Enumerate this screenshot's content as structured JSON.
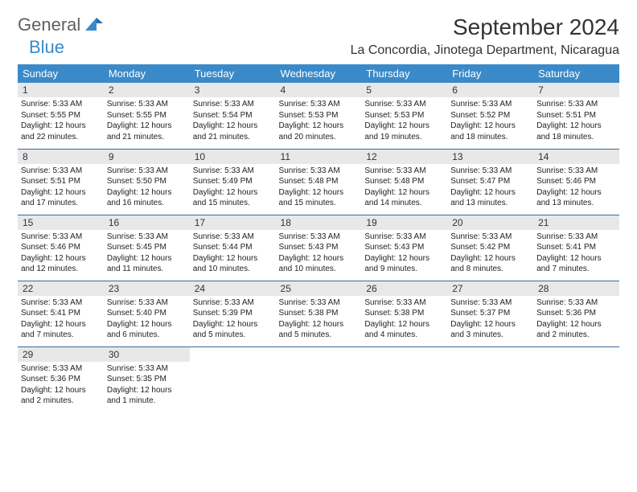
{
  "brand": {
    "part1": "General",
    "part2": "Blue"
  },
  "title": "September 2024",
  "location": "La Concordia, Jinotega Department, Nicaragua",
  "colors": {
    "header_bg": "#3a8ac9",
    "header_text": "#ffffff",
    "daynum_bg": "#e8e8e8",
    "border": "#3a6a9a",
    "brand_gray": "#606060",
    "brand_blue": "#3a8ac9"
  },
  "weekdays": [
    "Sunday",
    "Monday",
    "Tuesday",
    "Wednesday",
    "Thursday",
    "Friday",
    "Saturday"
  ],
  "weeks": [
    [
      {
        "n": "1",
        "sr": "5:33 AM",
        "ss": "5:55 PM",
        "dl": "12 hours and 22 minutes."
      },
      {
        "n": "2",
        "sr": "5:33 AM",
        "ss": "5:55 PM",
        "dl": "12 hours and 21 minutes."
      },
      {
        "n": "3",
        "sr": "5:33 AM",
        "ss": "5:54 PM",
        "dl": "12 hours and 21 minutes."
      },
      {
        "n": "4",
        "sr": "5:33 AM",
        "ss": "5:53 PM",
        "dl": "12 hours and 20 minutes."
      },
      {
        "n": "5",
        "sr": "5:33 AM",
        "ss": "5:53 PM",
        "dl": "12 hours and 19 minutes."
      },
      {
        "n": "6",
        "sr": "5:33 AM",
        "ss": "5:52 PM",
        "dl": "12 hours and 18 minutes."
      },
      {
        "n": "7",
        "sr": "5:33 AM",
        "ss": "5:51 PM",
        "dl": "12 hours and 18 minutes."
      }
    ],
    [
      {
        "n": "8",
        "sr": "5:33 AM",
        "ss": "5:51 PM",
        "dl": "12 hours and 17 minutes."
      },
      {
        "n": "9",
        "sr": "5:33 AM",
        "ss": "5:50 PM",
        "dl": "12 hours and 16 minutes."
      },
      {
        "n": "10",
        "sr": "5:33 AM",
        "ss": "5:49 PM",
        "dl": "12 hours and 15 minutes."
      },
      {
        "n": "11",
        "sr": "5:33 AM",
        "ss": "5:48 PM",
        "dl": "12 hours and 15 minutes."
      },
      {
        "n": "12",
        "sr": "5:33 AM",
        "ss": "5:48 PM",
        "dl": "12 hours and 14 minutes."
      },
      {
        "n": "13",
        "sr": "5:33 AM",
        "ss": "5:47 PM",
        "dl": "12 hours and 13 minutes."
      },
      {
        "n": "14",
        "sr": "5:33 AM",
        "ss": "5:46 PM",
        "dl": "12 hours and 13 minutes."
      }
    ],
    [
      {
        "n": "15",
        "sr": "5:33 AM",
        "ss": "5:46 PM",
        "dl": "12 hours and 12 minutes."
      },
      {
        "n": "16",
        "sr": "5:33 AM",
        "ss": "5:45 PM",
        "dl": "12 hours and 11 minutes."
      },
      {
        "n": "17",
        "sr": "5:33 AM",
        "ss": "5:44 PM",
        "dl": "12 hours and 10 minutes."
      },
      {
        "n": "18",
        "sr": "5:33 AM",
        "ss": "5:43 PM",
        "dl": "12 hours and 10 minutes."
      },
      {
        "n": "19",
        "sr": "5:33 AM",
        "ss": "5:43 PM",
        "dl": "12 hours and 9 minutes."
      },
      {
        "n": "20",
        "sr": "5:33 AM",
        "ss": "5:42 PM",
        "dl": "12 hours and 8 minutes."
      },
      {
        "n": "21",
        "sr": "5:33 AM",
        "ss": "5:41 PM",
        "dl": "12 hours and 7 minutes."
      }
    ],
    [
      {
        "n": "22",
        "sr": "5:33 AM",
        "ss": "5:41 PM",
        "dl": "12 hours and 7 minutes."
      },
      {
        "n": "23",
        "sr": "5:33 AM",
        "ss": "5:40 PM",
        "dl": "12 hours and 6 minutes."
      },
      {
        "n": "24",
        "sr": "5:33 AM",
        "ss": "5:39 PM",
        "dl": "12 hours and 5 minutes."
      },
      {
        "n": "25",
        "sr": "5:33 AM",
        "ss": "5:38 PM",
        "dl": "12 hours and 5 minutes."
      },
      {
        "n": "26",
        "sr": "5:33 AM",
        "ss": "5:38 PM",
        "dl": "12 hours and 4 minutes."
      },
      {
        "n": "27",
        "sr": "5:33 AM",
        "ss": "5:37 PM",
        "dl": "12 hours and 3 minutes."
      },
      {
        "n": "28",
        "sr": "5:33 AM",
        "ss": "5:36 PM",
        "dl": "12 hours and 2 minutes."
      }
    ],
    [
      {
        "n": "29",
        "sr": "5:33 AM",
        "ss": "5:36 PM",
        "dl": "12 hours and 2 minutes."
      },
      {
        "n": "30",
        "sr": "5:33 AM",
        "ss": "5:35 PM",
        "dl": "12 hours and 1 minute."
      },
      null,
      null,
      null,
      null,
      null
    ]
  ],
  "labels": {
    "sunrise": "Sunrise: ",
    "sunset": "Sunset: ",
    "daylight": "Daylight: "
  }
}
